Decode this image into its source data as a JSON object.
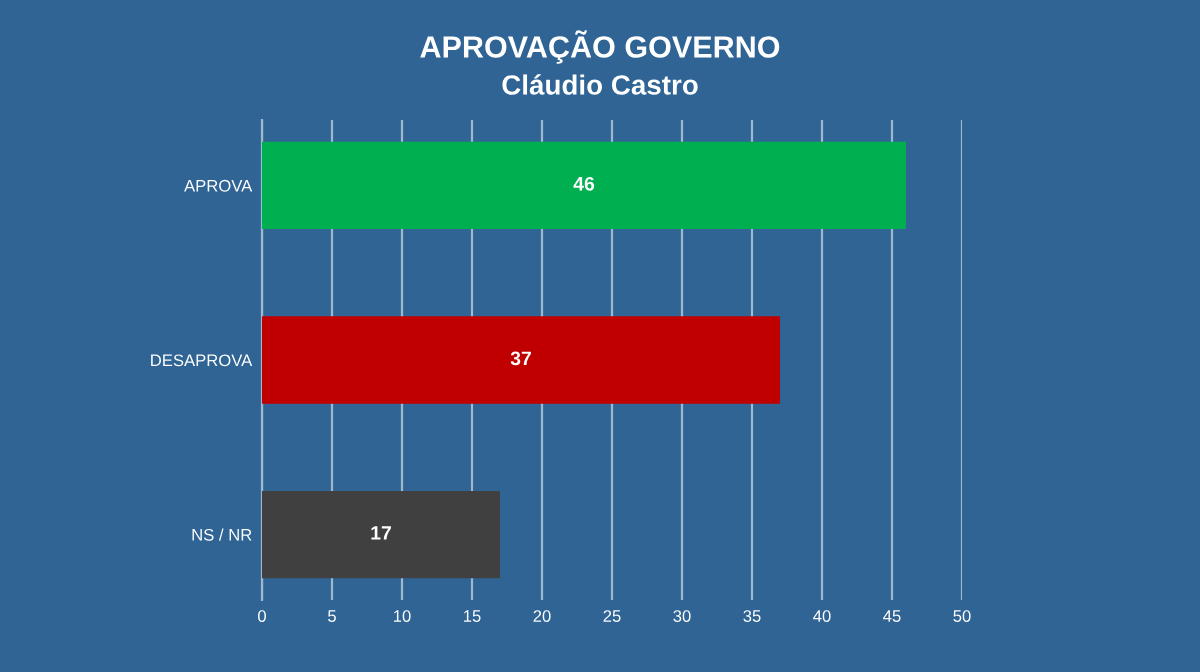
{
  "chart_data": {
    "type": "bar",
    "orientation": "horizontal",
    "title": "APROVAÇÃO GOVERNO",
    "subtitle": "Cláudio Castro",
    "categories": [
      "APROVA",
      "DESAPROVA",
      "NS / NR"
    ],
    "values": [
      46,
      37,
      17
    ],
    "colors": [
      "#00b050",
      "#c00000",
      "#404040"
    ],
    "xlim": [
      0,
      50
    ],
    "xticks": [
      0,
      5,
      10,
      15,
      20,
      25,
      30,
      35,
      40,
      45,
      50
    ],
    "grid": "x",
    "data_labels": true,
    "legend": false
  }
}
